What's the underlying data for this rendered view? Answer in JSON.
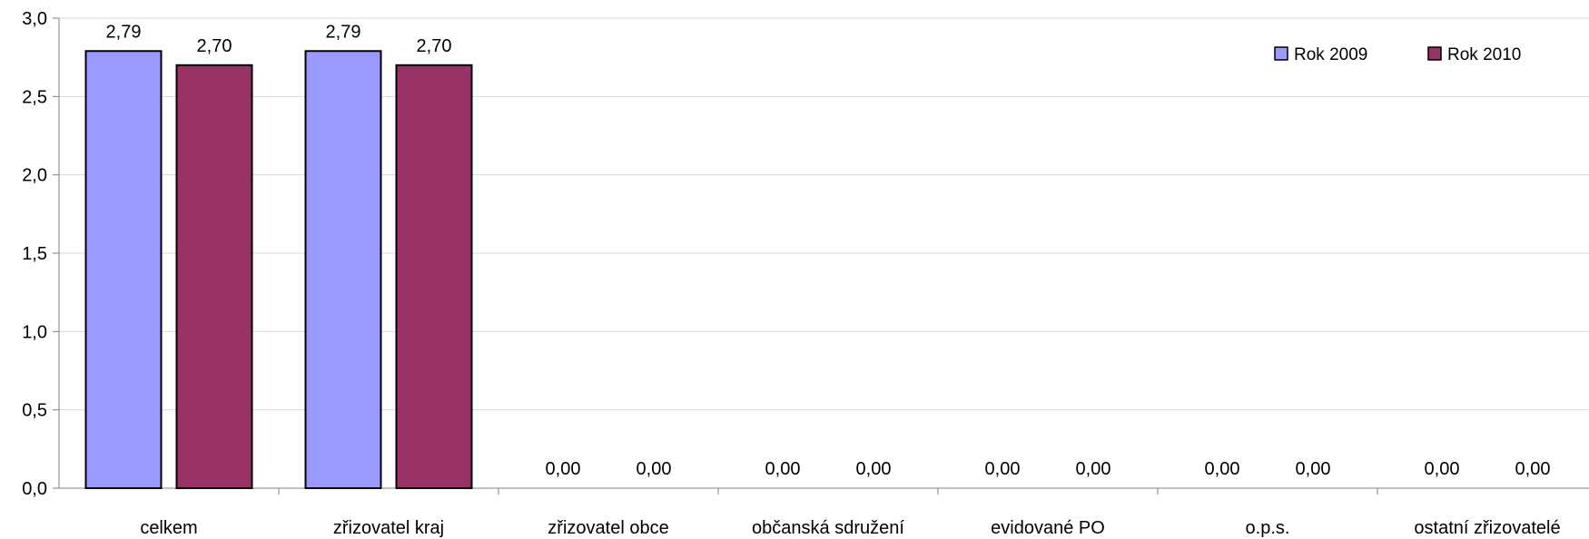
{
  "chart_data": {
    "type": "bar",
    "categories": [
      "celkem",
      "zřizovatel kraj",
      "zřizovatel obce",
      "občanská sdružení",
      "evidované PO",
      "o.p.s.",
      "ostatní zřizovatelé"
    ],
    "series": [
      {
        "name": "Rok 2009",
        "values": [
          2.79,
          2.79,
          0,
          0,
          0,
          0,
          0
        ],
        "labels": [
          "2,79",
          "2,79",
          "0,00",
          "0,00",
          "0,00",
          "0,00",
          "0,00"
        ],
        "color": "#9999ff"
      },
      {
        "name": "Rok 2010",
        "values": [
          2.7,
          2.7,
          0,
          0,
          0,
          0,
          0
        ],
        "labels": [
          "2,70",
          "2,70",
          "0,00",
          "0,00",
          "0,00",
          "0,00",
          "0,00"
        ],
        "color": "#993366"
      }
    ],
    "ylim": [
      0,
      3
    ],
    "yticks": [
      "0,0",
      "0,5",
      "1,0",
      "1,5",
      "2,0",
      "2,5",
      "3,0"
    ],
    "title": "",
    "xlabel": "",
    "ylabel": "",
    "grid": true,
    "legend_position": "top-right"
  }
}
